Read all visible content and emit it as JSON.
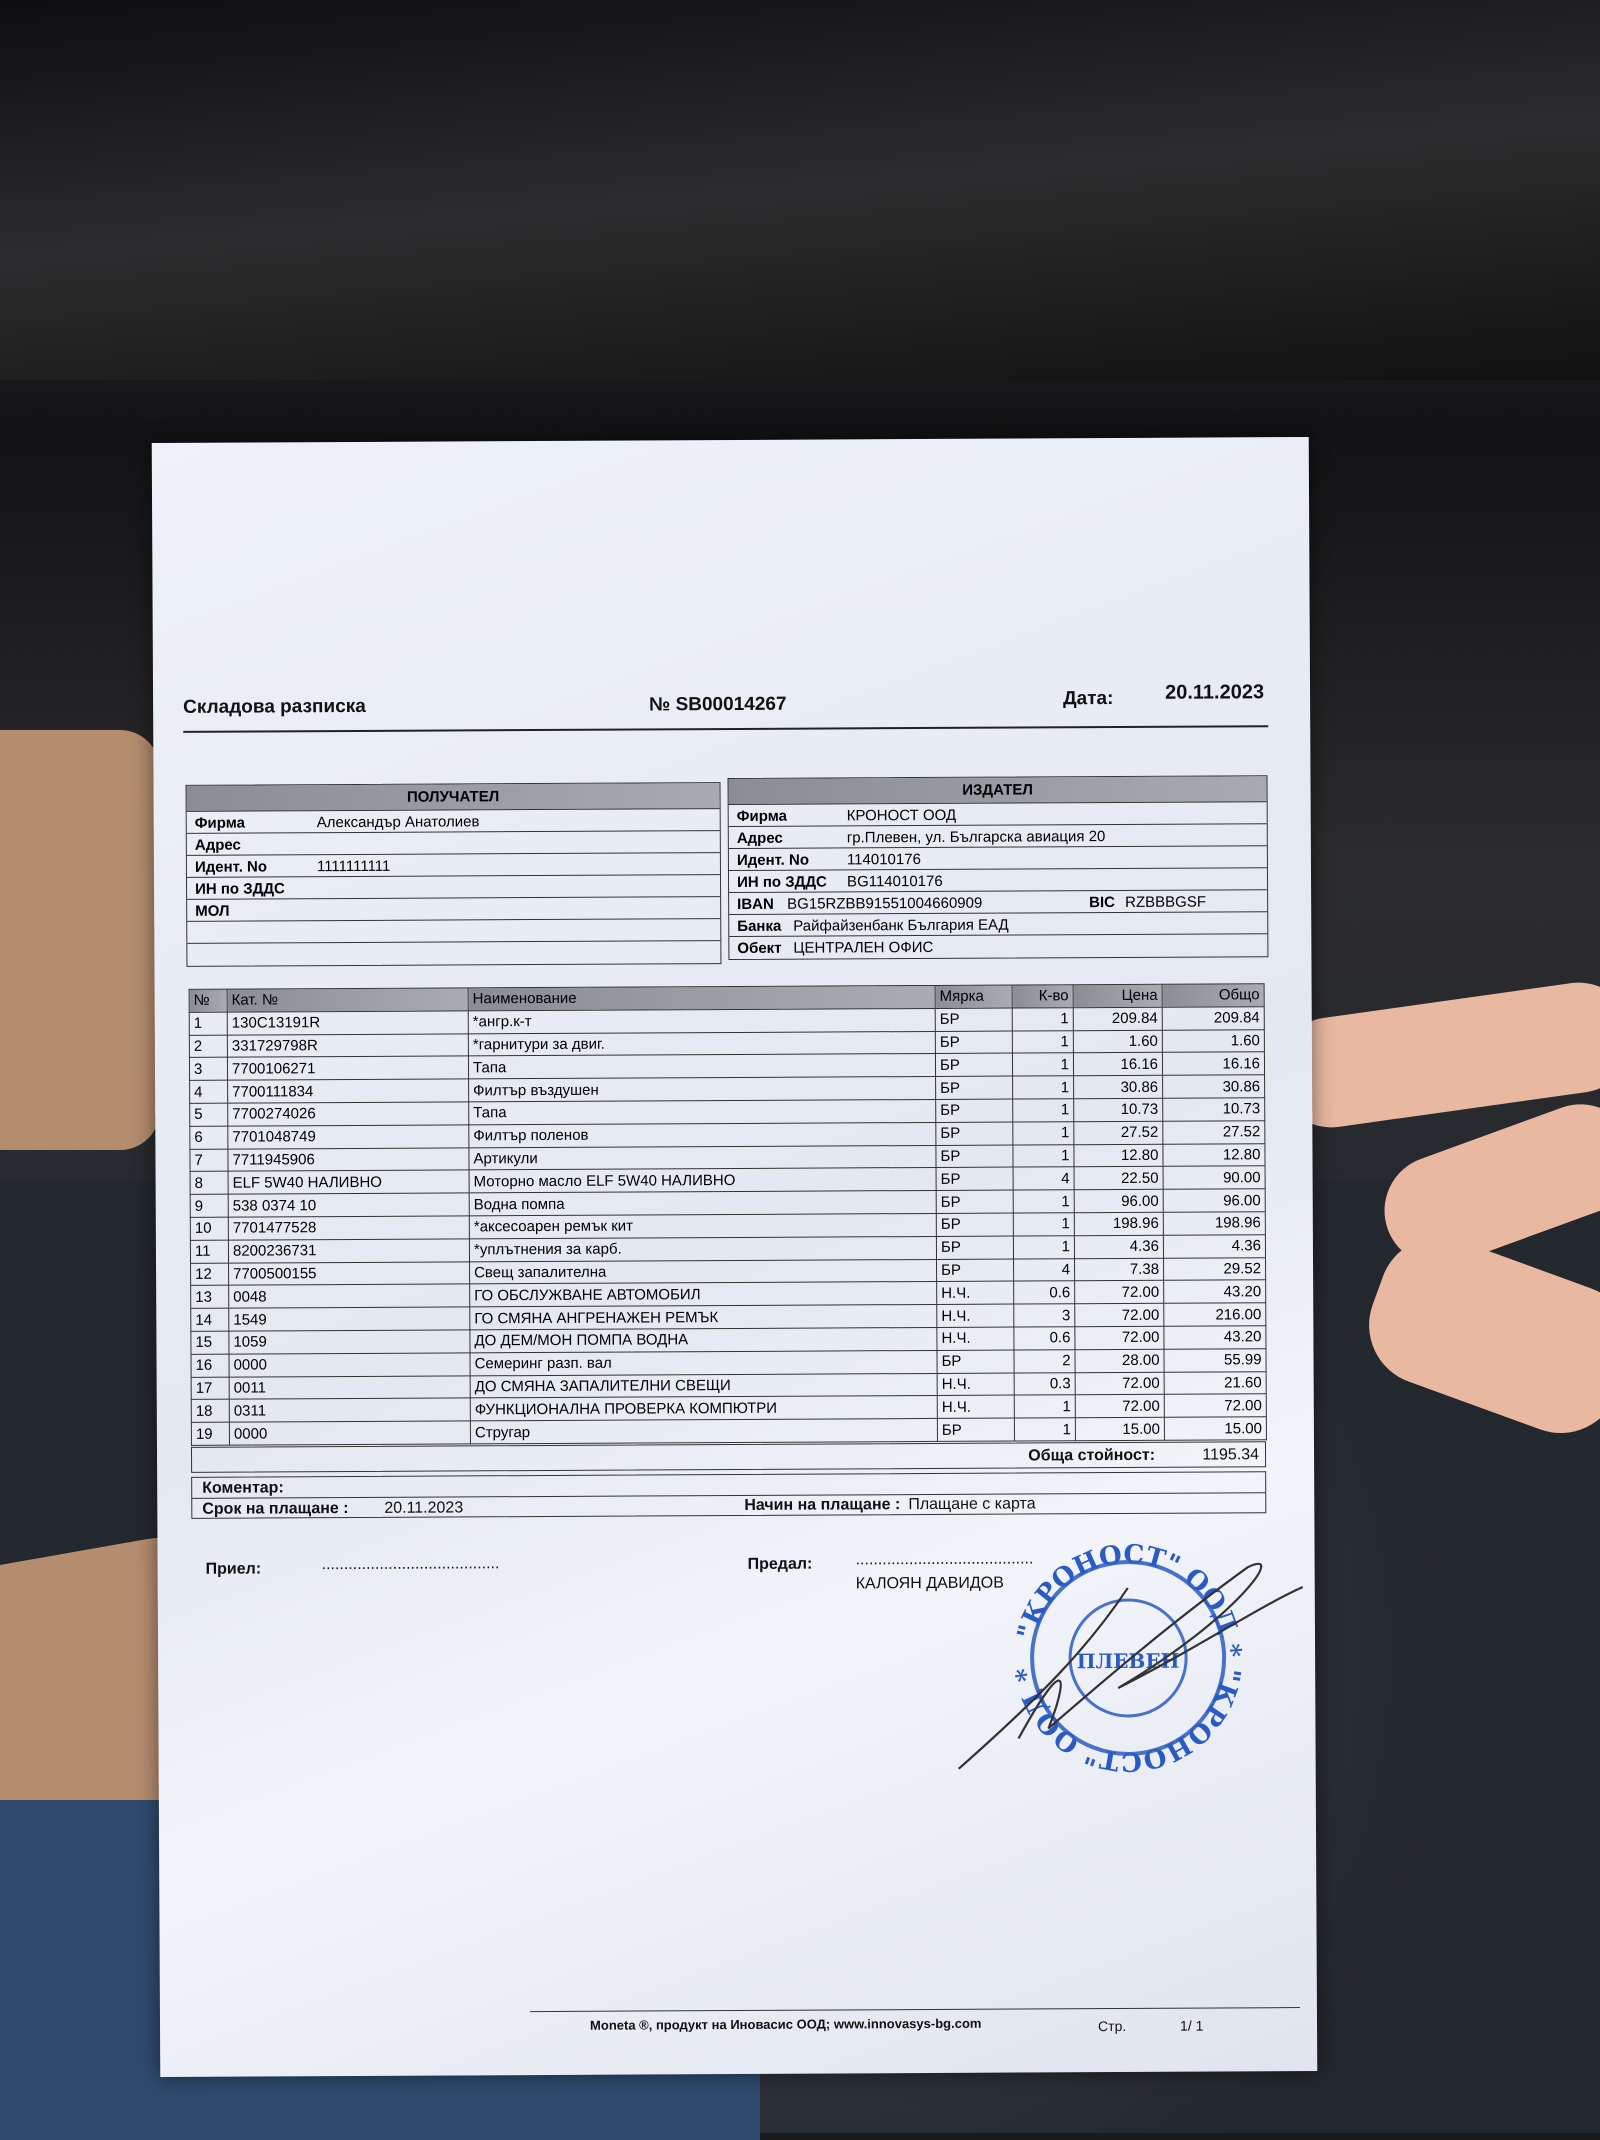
{
  "document": {
    "title": "Складова разписка",
    "number": "№ SB00014267",
    "date_label": "Дата:",
    "date": "20.11.2023"
  },
  "recipient": {
    "heading": "ПОЛУЧАТЕЛ",
    "rows": [
      {
        "label": "Фирма",
        "value": "Александър Анатолиев"
      },
      {
        "label": "Адрес",
        "value": ""
      },
      {
        "label": "Идент. No",
        "value": "1111111111"
      },
      {
        "label": "ИН по ЗДДС",
        "value": ""
      },
      {
        "label": "МОЛ",
        "value": ""
      },
      {
        "label": "",
        "value": ""
      },
      {
        "label": "",
        "value": ""
      }
    ]
  },
  "issuer": {
    "heading": "ИЗДАТЕЛ",
    "rows": [
      {
        "label": "Фирма",
        "value": "КРОНОСТ ООД"
      },
      {
        "label": "Адрес",
        "value": "гр.Плевен, ул. Българска авиация 20"
      },
      {
        "label": "Идент. No",
        "value": "114010176"
      },
      {
        "label": "ИН по ЗДДС",
        "value": "BG114010176"
      },
      {
        "label": "IBAN",
        "value": "BG15RZBB91551004660909"
      },
      {
        "label": "Банка",
        "value": "Райфайзенбанк България ЕАД"
      },
      {
        "label": "Обект",
        "value": "ЦЕНТРАЛЕН ОФИС"
      }
    ],
    "bic_label": "BIC",
    "bic": "RZBBBGSF"
  },
  "items": {
    "columns": [
      "№",
      "Кат. №",
      "Наименование",
      "Мярка",
      "К-во",
      "Цена",
      "Общо"
    ],
    "rows": [
      [
        "1",
        "130C13191R",
        "*ангр.к-т",
        "БР",
        "1",
        "209.84",
        "209.84"
      ],
      [
        "2",
        "331729798R",
        "*гарнитури за двиг.",
        "БР",
        "1",
        "1.60",
        "1.60"
      ],
      [
        "3",
        "7700106271",
        "Тапа",
        "БР",
        "1",
        "16.16",
        "16.16"
      ],
      [
        "4",
        "7700111834",
        "Филтър въздушен",
        "БР",
        "1",
        "30.86",
        "30.86"
      ],
      [
        "5",
        "7700274026",
        "Тапа",
        "БР",
        "1",
        "10.73",
        "10.73"
      ],
      [
        "6",
        "7701048749",
        "Филтър поленов",
        "БР",
        "1",
        "27.52",
        "27.52"
      ],
      [
        "7",
        "7711945906",
        "Артикули",
        "БР",
        "1",
        "12.80",
        "12.80"
      ],
      [
        "8",
        "ELF 5W40 НАЛИВНО",
        "Моторно масло ELF  5W40 НАЛИВНО",
        "БР",
        "4",
        "22.50",
        "90.00"
      ],
      [
        "9",
        "538 0374 10",
        "Водна помпа",
        "БР",
        "1",
        "96.00",
        "96.00"
      ],
      [
        "10",
        "7701477528",
        "*аксесоарен ремък  кит",
        "БР",
        "1",
        "198.96",
        "198.96"
      ],
      [
        "11",
        "8200236731",
        "*уплътнения за карб.",
        "БР",
        "1",
        "4.36",
        "4.36"
      ],
      [
        "12",
        "7700500155",
        "Свещ запалителна",
        "БР",
        "4",
        "7.38",
        "29.52"
      ],
      [
        "13",
        "0048",
        "ГО ОБСЛУЖВАНЕ АВТОМОБИЛ",
        "Н.Ч.",
        "0.6",
        "72.00",
        "43.20"
      ],
      [
        "14",
        "1549",
        "ГО СМЯНА АНГРЕНАЖЕН РЕМЪК",
        "Н.Ч.",
        "3",
        "72.00",
        "216.00"
      ],
      [
        "15",
        "1059",
        "ДО ДЕМ/МОН ПОМПА ВОДНА",
        "Н.Ч.",
        "0.6",
        "72.00",
        "43.20"
      ],
      [
        "16",
        "0000",
        "Семеринг разп. вал",
        "БР",
        "2",
        "28.00",
        "55.99"
      ],
      [
        "17",
        "0011",
        "ДО СМЯНА ЗАПАЛИТЕЛНИ СВЕЩИ",
        "Н.Ч.",
        "0.3",
        "72.00",
        "21.60"
      ],
      [
        "18",
        "0311",
        "ФУНКЦИОНАЛНА ПРОВЕРКА КОМПЮТРИ",
        "Н.Ч.",
        "1",
        "72.00",
        "72.00"
      ],
      [
        "19",
        "0000",
        "Стругар",
        "БР",
        "1",
        "15.00",
        "15.00"
      ]
    ],
    "total_label": "Обща стойност:",
    "total": "1195.34"
  },
  "payment": {
    "comment_label": "Коментар:",
    "term_label": "Срок на плащане :",
    "term": "20.11.2023",
    "method_label": "Начин на плащане :",
    "method": "Плащане с карта"
  },
  "signatures": {
    "received_label": "Приел:",
    "received_dots": "........................................",
    "handed_label": "Предал:",
    "handed_dots": "........................................",
    "handed_name": "КАЛОЯН ДАВИДОВ",
    "stamp_text": "\"КРОНОСТ\" ООД * \"КРОНОСТ\" ООД *",
    "stamp_center": "ПЛЕВЕН",
    "stamp_color": "#2a5bc4"
  },
  "footer": {
    "software": "Moneta ®, продукт на Иновасис ООД; www.innovasys-bg.com",
    "page_label": "Стр.",
    "page": "1/ 1"
  }
}
